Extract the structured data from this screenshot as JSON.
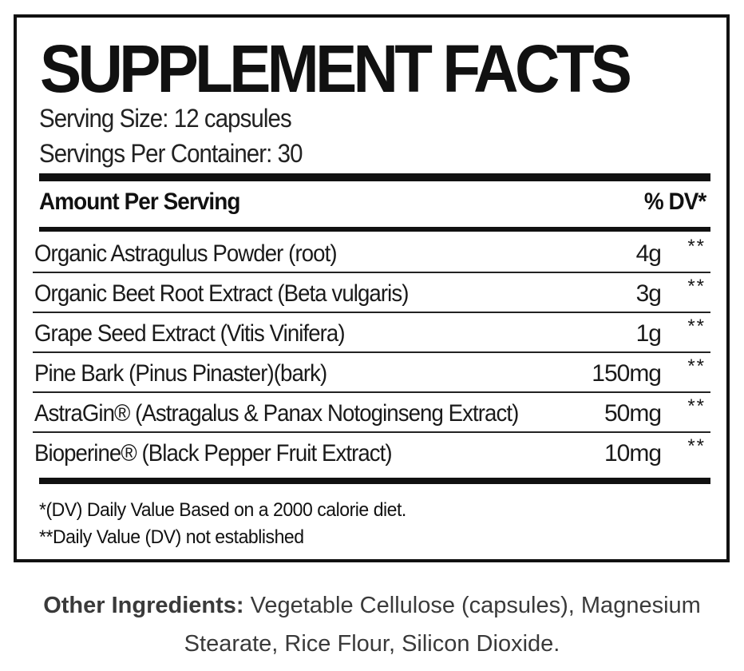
{
  "title": "SUPPLEMENT FACTS",
  "serving_size": "Serving Size: 12 capsules",
  "servings_per_container": "Servings Per Container: 30",
  "header": {
    "amount_label": "Amount Per Serving",
    "dv_label": "% DV*"
  },
  "ingredients": [
    {
      "name": "Organic Astragulus Powder (root)",
      "amount": "4g",
      "dv": "**"
    },
    {
      "name": "Organic Beet Root Extract (Beta vulgaris)",
      "amount": "3g",
      "dv": "**"
    },
    {
      "name": "Grape Seed Extract (Vitis Vinifera)",
      "amount": "1g",
      "dv": "**"
    },
    {
      "name": "Pine Bark (Pinus Pinaster)(bark)",
      "amount": "150mg",
      "dv": "**"
    },
    {
      "name": "AstraGin® (Astragalus & Panax Notoginseng Extract)",
      "amount": "50mg",
      "dv": "**"
    },
    {
      "name": "Bioperine® (Black Pepper Fruit Extract)",
      "amount": "10mg",
      "dv": "**"
    }
  ],
  "footnotes": {
    "dv_note": "*(DV) Daily Value Based on a 2000 calorie diet.",
    "not_established": "**Daily Value (DV) not established"
  },
  "other_ingredients": {
    "label": "Other Ingredients:",
    "text": " Vegetable Cellulose (capsules), Magnesium Stearate, Rice Flour, Silicon Dioxide."
  }
}
